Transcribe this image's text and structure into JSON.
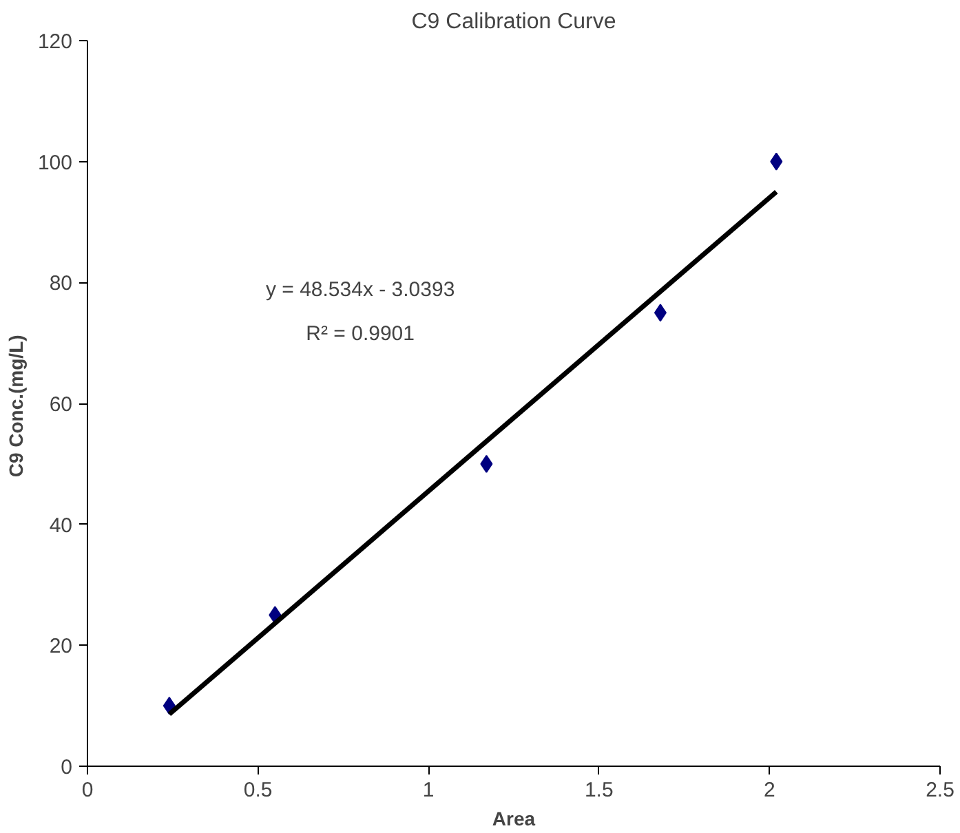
{
  "chart_data": {
    "type": "scatter",
    "title": "C9 Calibration Curve",
    "xlabel": "Area",
    "ylabel": "C9  Conc.(mg/L)",
    "x": [
      0.24,
      0.55,
      1.17,
      1.68,
      2.02
    ],
    "series": [
      {
        "color": "#000080",
        "values": [
          10,
          25,
          50,
          75,
          100
        ],
        "marker": "diamond"
      },
      {
        "type": "line",
        "color": "#000000",
        "x": [
          0.24,
          2.02
        ],
        "values": [
          8.6,
          95.0
        ]
      }
    ],
    "annotations": [
      "y = 48.534x - 3.0393",
      "R² = 0.9901"
    ],
    "xlim": [
      0,
      2.5
    ],
    "ylim": [
      0,
      120
    ],
    "xticks": [
      0,
      0.5,
      1,
      1.5,
      2,
      2.5
    ],
    "yticks": [
      0,
      20,
      40,
      60,
      80,
      100,
      120
    ],
    "grid": false
  }
}
